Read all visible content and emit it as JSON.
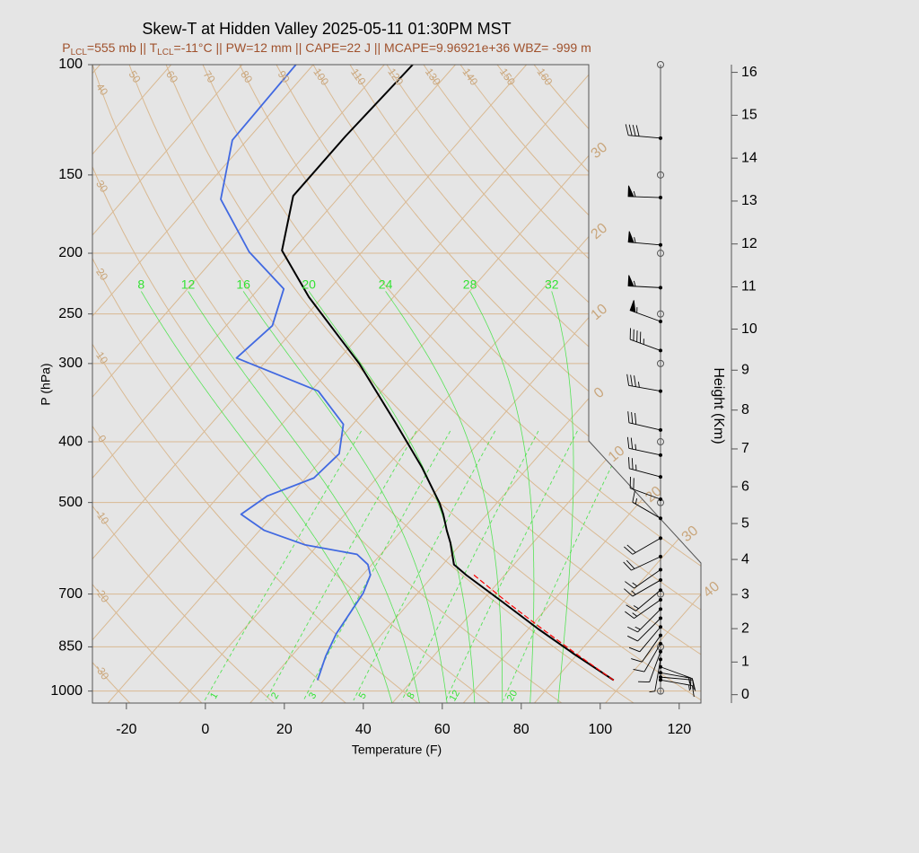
{
  "chart_data": {
    "type": "skew-t",
    "title": "Skew-T at Hidden Valley 2025-05-11 01:30PM MST",
    "subtitle": [
      "P",
      "LCL",
      "=555 mb || T",
      "LCL",
      "=-11°C || PW=12 mm || CAPE=22 J || MCAPE=9.96921e+36 WBZ= -999 m"
    ],
    "x_label": "Temperature (F)",
    "y_label": "P (hPa)",
    "y2_label": "Height (Km)",
    "xlim": [
      -28.6,
      125.5
    ],
    "xticks": [
      -20,
      0,
      20,
      40,
      60,
      80,
      100,
      120
    ],
    "ylim": [
      1045,
      100
    ],
    "yticks": [
      100,
      150,
      200,
      250,
      300,
      400,
      500,
      700,
      850,
      1000
    ],
    "y_log": true,
    "y2ticks": [
      0,
      1,
      2,
      3,
      4,
      5,
      6,
      7,
      8,
      9,
      10,
      11,
      12,
      13,
      14,
      15,
      16
    ],
    "grid": true,
    "grid_color": "#d9b992",
    "grid_label_color": "#c9a67c",
    "isotherms": [
      {
        "value": -110
      },
      {
        "value": -100
      },
      {
        "value": -90
      },
      {
        "value": -80
      },
      {
        "value": -70
      },
      {
        "value": -60
      },
      {
        "value": -50
      },
      {
        "value": -40
      },
      {
        "value": -30,
        "label": "30"
      },
      {
        "value": -20,
        "label": "20"
      },
      {
        "value": -10,
        "label": "10"
      },
      0,
      10,
      20,
      30,
      40
    ],
    "dry_adiabats": [
      -30,
      -20,
      -10,
      0,
      10,
      20,
      30,
      40,
      50,
      60,
      70,
      80,
      90,
      100,
      110,
      120,
      130,
      140,
      150,
      160
    ],
    "moist_adiabats": [
      8,
      12,
      16,
      20,
      24,
      28,
      32
    ],
    "mixing_ratios": [
      1,
      2,
      3,
      5,
      8,
      12,
      20
    ],
    "moist_color": "#33e233",
    "temperature": {
      "pressure": [
        100,
        130,
        162,
        198,
        235,
        300,
        372,
        439,
        501,
        522,
        554,
        580,
        628,
        653,
        721,
        796,
        873,
        961
      ],
      "values": [
        -86.8,
        -87.9,
        -87.9,
        -78.6,
        -61.4,
        -33.9,
        -11.8,
        5.0,
        17.5,
        20.9,
        25.4,
        29.1,
        34.8,
        40.3,
        55.5,
        70.5,
        85.2,
        101.0
      ],
      "color": "#000000"
    },
    "dewpoint": {
      "pressure": [
        100,
        132,
        164,
        199,
        228,
        261,
        294,
        332,
        375,
        418,
        457,
        488,
        522,
        554,
        584,
        605,
        628,
        653,
        698,
        810,
        879,
        961
      ],
      "values": [
        -116.4,
        -115.7,
        -105.5,
        -86.6,
        -69.6,
        -64.3,
        -66.2,
        -38.1,
        -24.4,
        -18.9,
        -19.9,
        -27.7,
        -30.3,
        -20.8,
        -7.4,
        8.0,
        13.0,
        16.0,
        18.2,
        20.4,
        22.7,
        26.0
      ],
      "color": "#4169e1"
    },
    "parcel": {
      "pressure": [
        961,
        873,
        796,
        720,
        650
      ],
      "values": [
        101.0,
        85.8,
        71.5,
        56.4,
        41.6
      ],
      "color": "#ff0000"
    },
    "wind_barbs": {
      "pressure": [
        131,
        163,
        194,
        227,
        257,
        286,
        332,
        383,
        420,
        455,
        494,
        530,
        570,
        610,
        640,
        665,
        690,
        715,
        740,
        765,
        790,
        815,
        840,
        865,
        890,
        915,
        935,
        950,
        960
      ],
      "speed": [
        40,
        55,
        55,
        55,
        55,
        45,
        35,
        30,
        25,
        25,
        20,
        15,
        20,
        20,
        15,
        15,
        15,
        15,
        15,
        10,
        10,
        10,
        10,
        10,
        5,
        10,
        15,
        15,
        15
      ],
      "direction": [
        275,
        272,
        275,
        273,
        290,
        290,
        280,
        283,
        282,
        285,
        290,
        300,
        240,
        245,
        235,
        240,
        230,
        235,
        225,
        225,
        220,
        215,
        210,
        200,
        190,
        110,
        100,
        95,
        100
      ],
      "color": "#000000"
    }
  }
}
